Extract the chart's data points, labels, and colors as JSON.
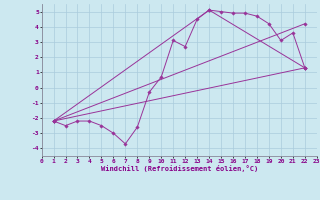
{
  "xlabel": "Windchill (Refroidissement éolien,°C)",
  "background_color": "#cce8f0",
  "grid_color": "#aaccdd",
  "line_color": "#993399",
  "xlim": [
    0,
    23
  ],
  "ylim": [
    -4.5,
    5.5
  ],
  "xticks": [
    0,
    1,
    2,
    3,
    4,
    5,
    6,
    7,
    8,
    9,
    10,
    11,
    12,
    13,
    14,
    15,
    16,
    17,
    18,
    19,
    20,
    21,
    22,
    23
  ],
  "yticks": [
    -4,
    -3,
    -2,
    -1,
    0,
    1,
    2,
    3,
    4,
    5
  ],
  "series": [
    {
      "x": [
        1,
        2,
        3,
        4,
        5,
        6,
        7,
        8,
        9,
        10,
        11,
        12,
        13,
        14,
        15,
        16,
        17,
        18,
        19,
        20,
        21,
        22
      ],
      "y": [
        -2.2,
        -2.5,
        -2.2,
        -2.2,
        -2.5,
        -3.0,
        -3.7,
        -2.6,
        -0.3,
        0.7,
        3.1,
        2.7,
        4.5,
        5.1,
        5.0,
        4.9,
        4.9,
        4.7,
        4.2,
        3.1,
        3.6,
        1.3
      ]
    },
    {
      "x": [
        1,
        22
      ],
      "y": [
        -2.2,
        1.3
      ]
    },
    {
      "x": [
        1,
        14,
        22
      ],
      "y": [
        -2.2,
        5.1,
        1.3
      ]
    },
    {
      "x": [
        1,
        22
      ],
      "y": [
        -2.2,
        4.2
      ]
    }
  ]
}
